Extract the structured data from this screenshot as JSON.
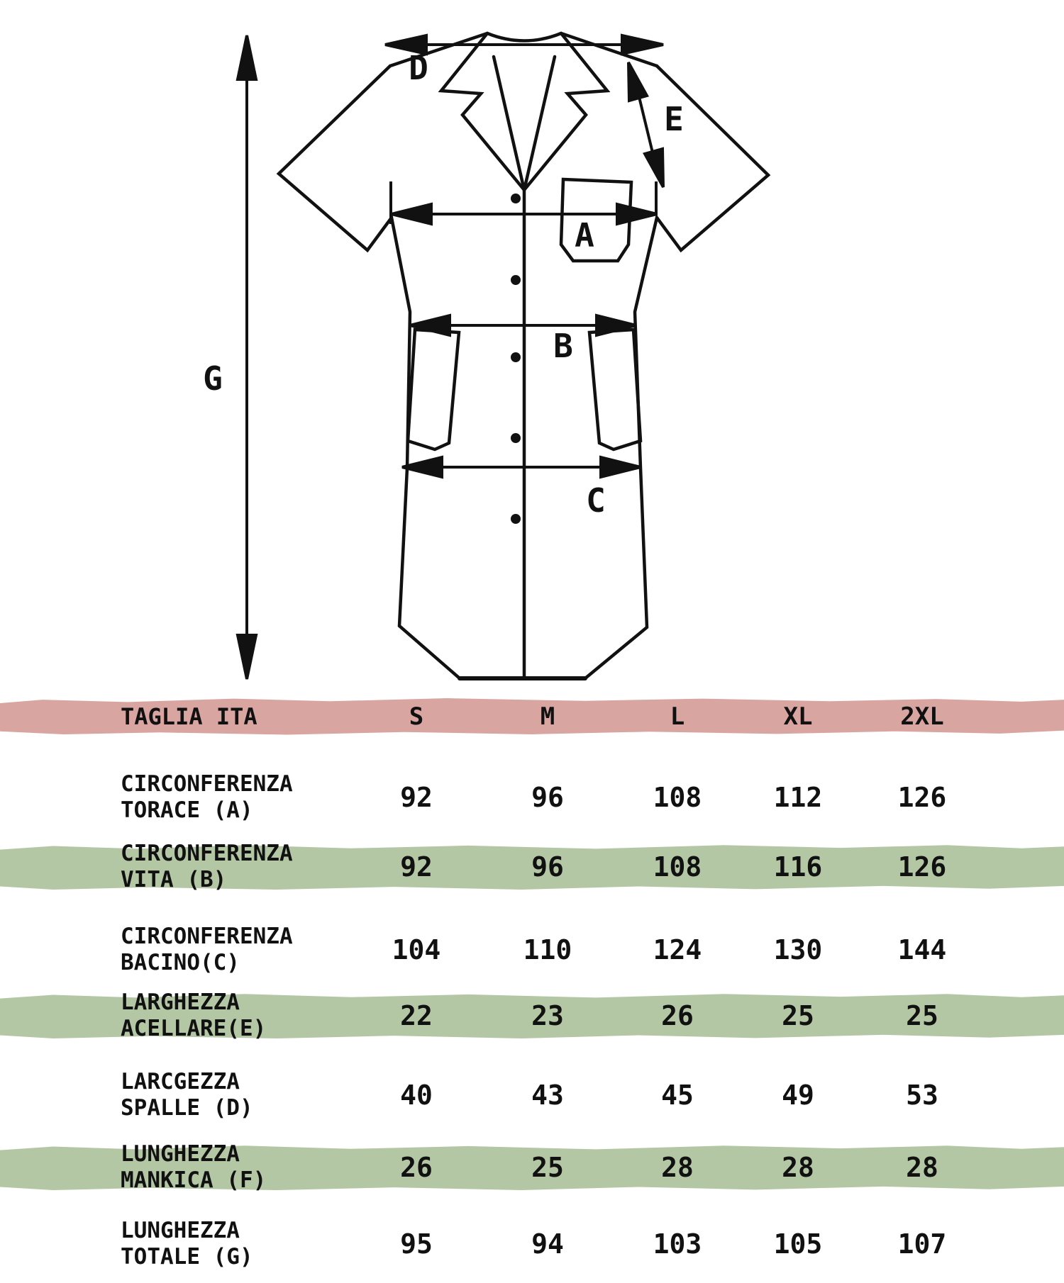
{
  "diagram": {
    "labels": {
      "A": "A",
      "B": "B",
      "C": "C",
      "D": "D",
      "E": "E",
      "G": "G"
    }
  },
  "table": {
    "header": {
      "label": "TAGLIA ITA",
      "sizes": [
        "S",
        "M",
        "L",
        "XL",
        "2XL"
      ]
    },
    "rows": [
      {
        "label_line1": "CIRCONFERENZA",
        "label_line2": "TORACE (A)",
        "values": [
          "92",
          "96",
          "108",
          "112",
          "126"
        ],
        "highlight": false
      },
      {
        "label_line1": "CIRCONFERENZA",
        "label_line2": "VITA (B)",
        "values": [
          "92",
          "96",
          "108",
          "116",
          "126"
        ],
        "highlight": true
      },
      {
        "label_line1": "CIRCONFERENZA",
        "label_line2": "BACINO(C)",
        "values": [
          "104",
          "110",
          "124",
          "130",
          "144"
        ],
        "highlight": false
      },
      {
        "label_line1": "LARGHEZZA",
        "label_line2": "ACELLARE(E)",
        "values": [
          "22",
          "23",
          "26",
          "25",
          "25"
        ],
        "highlight": true
      },
      {
        "label_line1": "LARCGEZZA",
        "label_line2": "SPALLE (D)",
        "values": [
          "40",
          "43",
          "45",
          "49",
          "53"
        ],
        "highlight": false
      },
      {
        "label_line1": "LUNGHEZZA",
        "label_line2": "MANKICA (F)",
        "values": [
          "26",
          "25",
          "28",
          "28",
          "28"
        ],
        "highlight": true
      },
      {
        "label_line1": "LUNGHEZZA",
        "label_line2": "TOTALE (G)",
        "values": [
          "95",
          "94",
          "103",
          "105",
          "107"
        ],
        "highlight": false
      }
    ]
  },
  "colors": {
    "header_band": "#d9a5a1",
    "highlight_band": "#b4c7a4",
    "ink": "#111111"
  }
}
